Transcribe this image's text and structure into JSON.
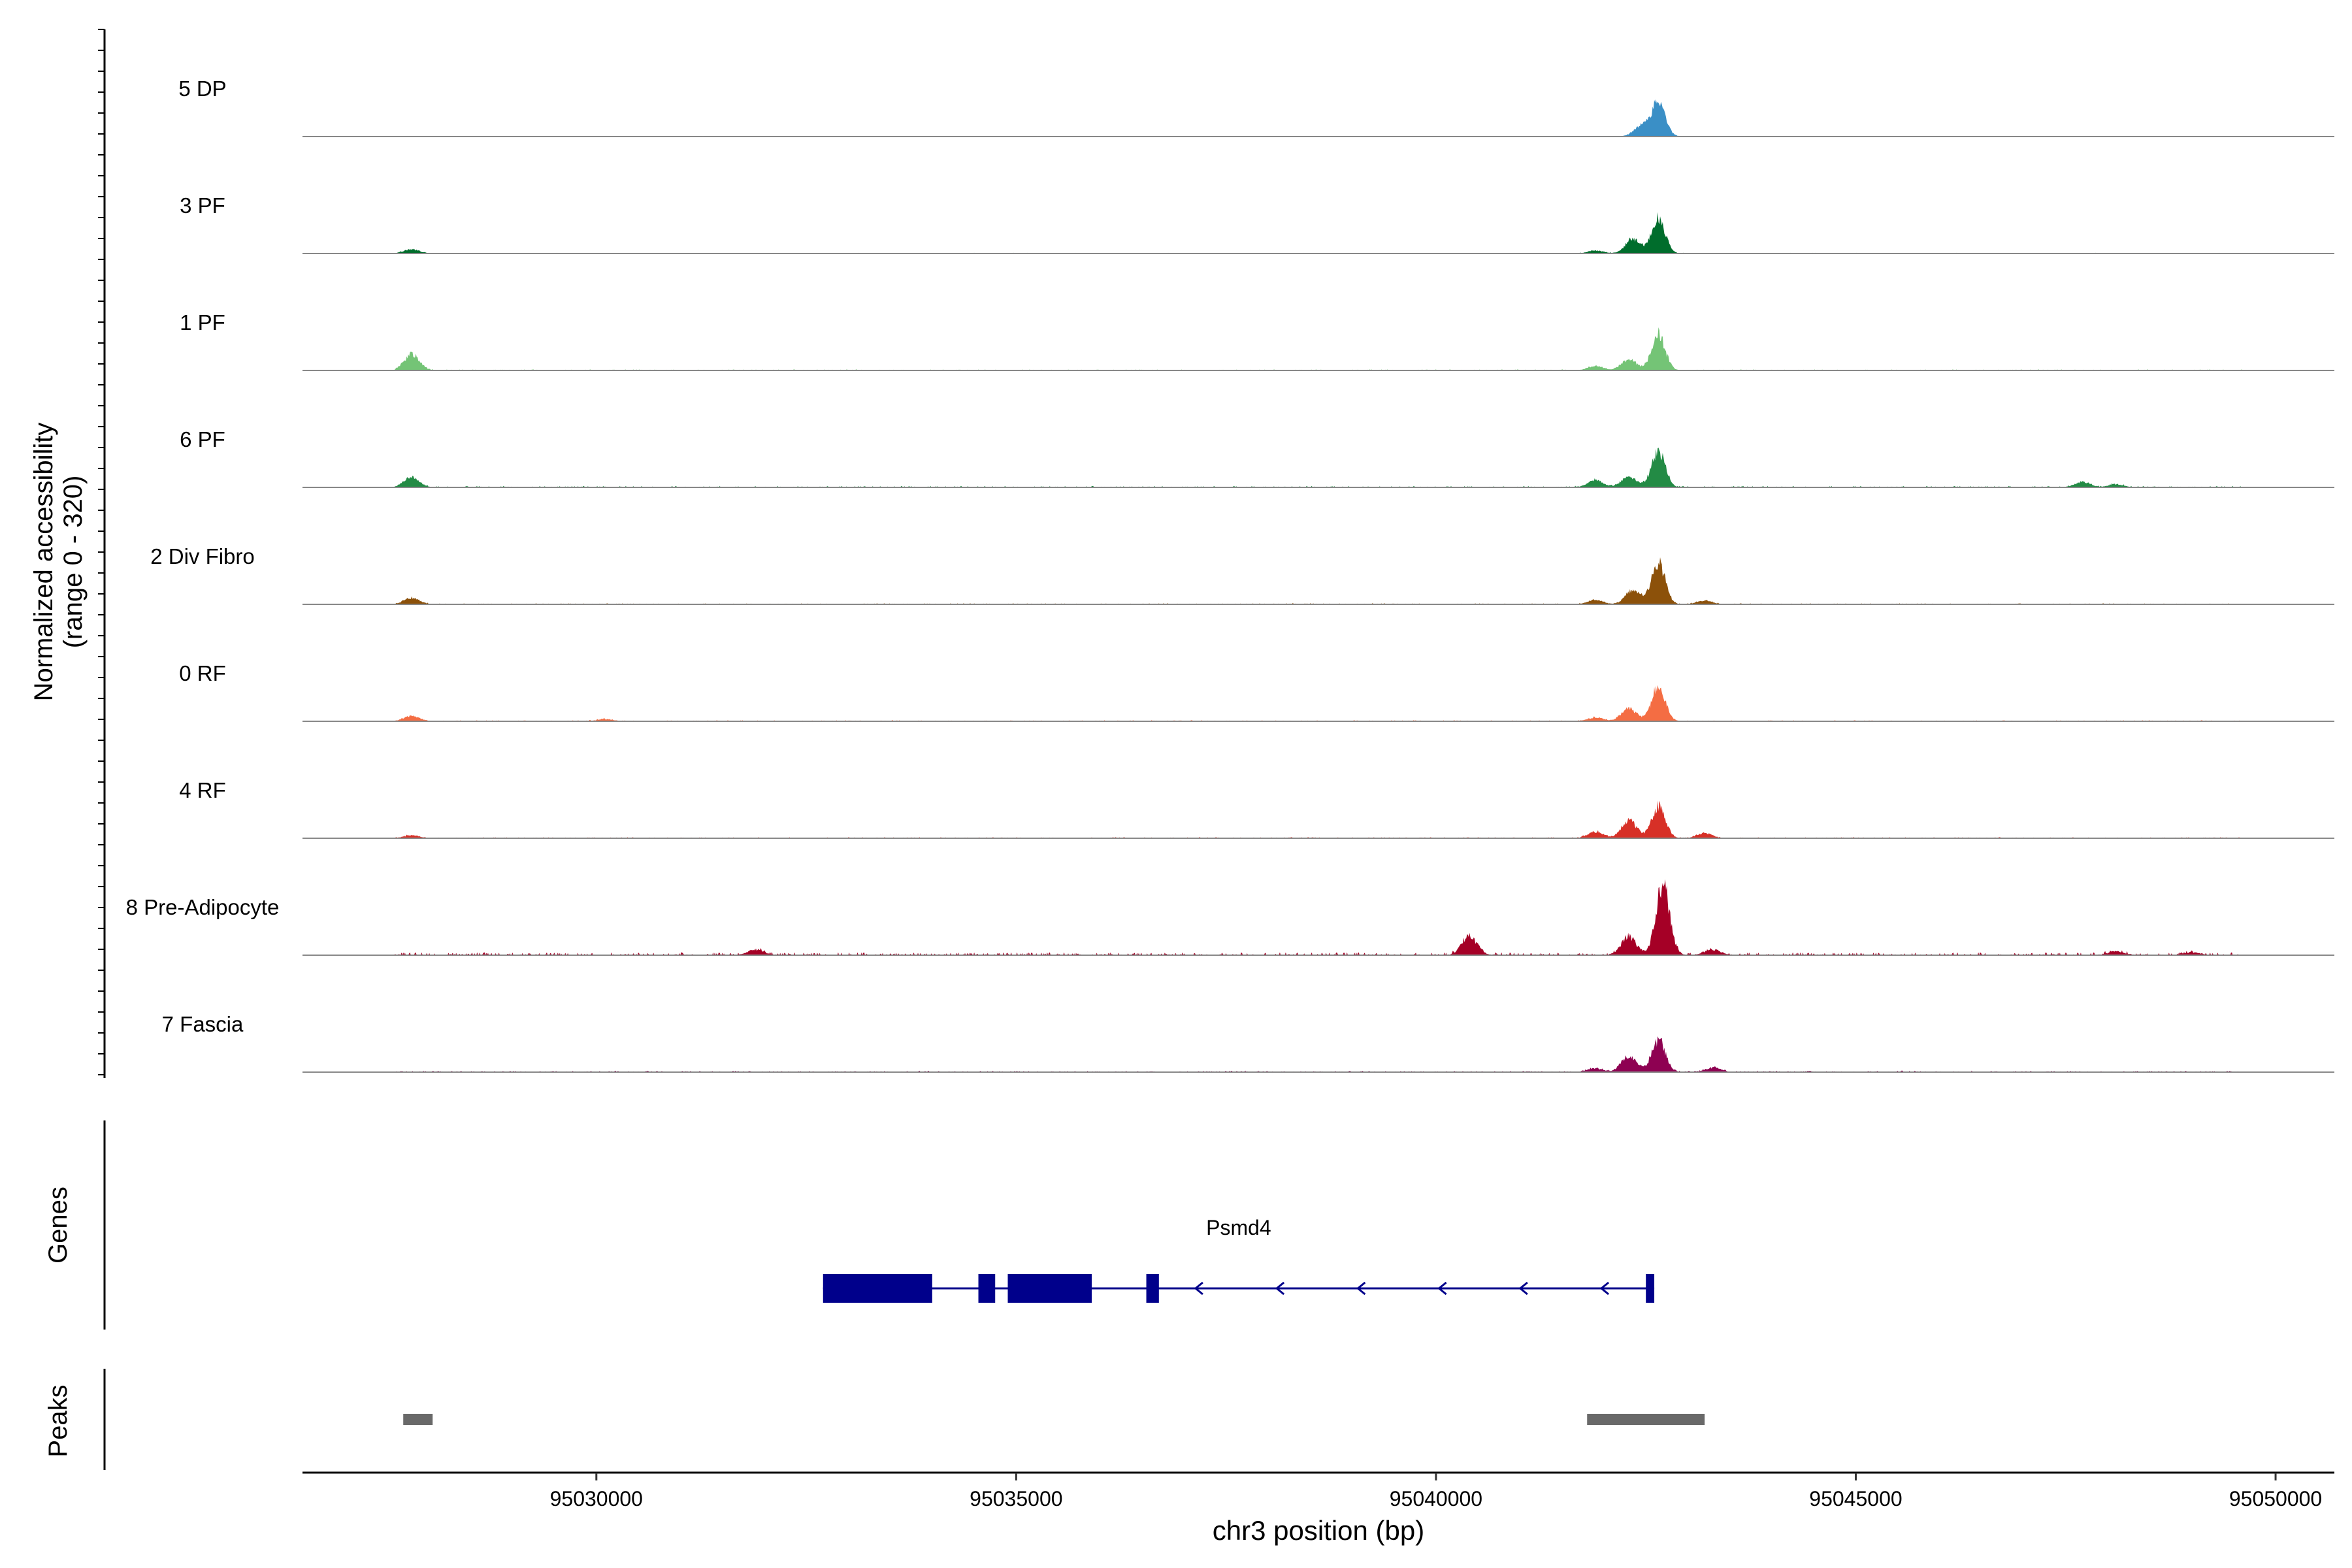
{
  "chart_data": {
    "type": "area",
    "title": "",
    "ylabel_line1": "Normalized accessibility",
    "ylabel_line2": "(range 0 - 320)",
    "y_range": [
      0,
      320
    ],
    "xlabel": "chr3 position (bp)",
    "x_range": [
      95026500,
      95050700
    ],
    "x_ticks": [
      95030000,
      95035000,
      95040000,
      95045000,
      95050000
    ],
    "x_tick_labels": [
      "95030000",
      "95035000",
      "95040000",
      "95045000",
      "95050000"
    ],
    "coverage_region": [
      95027600,
      95049600
    ],
    "tracks": [
      {
        "name": "5 DP",
        "color": "#3a8fc6",
        "main_peak": [
          95042450,
          95042650,
          30,
          95
        ],
        "small_peaks": [],
        "noise": 2
      },
      {
        "name": "3 PF",
        "color": "#006d2c",
        "main_peak": [
          95042350,
          95042650,
          40,
          100
        ],
        "small_peaks": [
          [
            95027800,
            12
          ],
          [
            95041900,
            8
          ]
        ],
        "noise": 2
      },
      {
        "name": "1 PF",
        "color": "#74c476",
        "main_peak": [
          95042300,
          95042650,
          30,
          100
        ],
        "small_peaks": [
          [
            95027800,
            45
          ],
          [
            95041900,
            12
          ]
        ],
        "noise": 3
      },
      {
        "name": "6 PF",
        "color": "#238b45",
        "main_peak": [
          95042300,
          95042650,
          30,
          100
        ],
        "small_peaks": [
          [
            95027800,
            28
          ],
          [
            95041900,
            20
          ],
          [
            95047700,
            15
          ],
          [
            95048100,
            8
          ]
        ],
        "noise": 4
      },
      {
        "name": "2 Div Fibro",
        "color": "#8c510a",
        "main_peak": [
          95042350,
          95042650,
          40,
          115
        ],
        "small_peaks": [
          [
            95027800,
            18
          ],
          [
            95041900,
            12
          ],
          [
            95043200,
            10
          ]
        ],
        "noise": 3
      },
      {
        "name": "0 RF",
        "color": "#f46d43",
        "main_peak": [
          95042300,
          95042650,
          35,
          100
        ],
        "small_peaks": [
          [
            95027800,
            15
          ],
          [
            95030100,
            6
          ],
          [
            95041900,
            10
          ]
        ],
        "noise": 3
      },
      {
        "name": "4 RF",
        "color": "#d73027",
        "main_peak": [
          95042300,
          95042650,
          50,
          90
        ],
        "small_peaks": [
          [
            95027800,
            8
          ],
          [
            95041900,
            18
          ],
          [
            95043200,
            14
          ]
        ],
        "noise": 3
      },
      {
        "name": "8 Pre-Adipocyte",
        "color": "#a50026",
        "main_peak": [
          95042300,
          95042700,
          50,
          200
        ],
        "small_peaks": [
          [
            95040400,
            50
          ],
          [
            95043300,
            15
          ],
          [
            95031900,
            15
          ],
          [
            95048100,
            10
          ],
          [
            95049000,
            8
          ]
        ],
        "noise": 8
      },
      {
        "name": "7 Fascia",
        "color": "#8e0152",
        "main_peak": [
          95042300,
          95042650,
          45,
          90
        ],
        "small_peaks": [
          [
            95043300,
            12
          ],
          [
            95041900,
            10
          ]
        ],
        "noise": 4
      }
    ],
    "genes_label": "Genes",
    "gene": {
      "name": "Psmd4",
      "strand": "-",
      "start": 95032700,
      "end": 95042600,
      "exons": [
        [
          95032700,
          95034000
        ],
        [
          95034550,
          95034750
        ],
        [
          95034900,
          95035900
        ],
        [
          95036550,
          95036700
        ],
        [
          95042500,
          95042600
        ]
      ]
    },
    "peaks_label": "Peaks",
    "peaks": [
      [
        95027700,
        95028050
      ],
      [
        95041800,
        95043200
      ]
    ]
  }
}
